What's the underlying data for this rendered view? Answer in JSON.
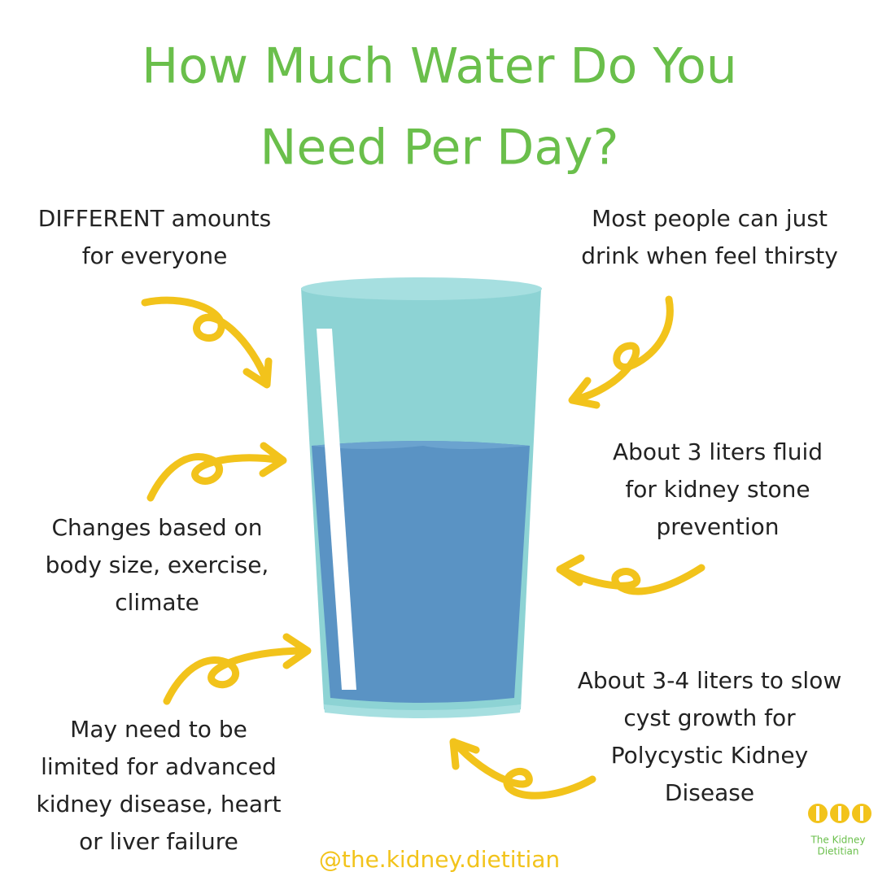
{
  "title": [
    "How Much Water Do You",
    "Need Per Day?"
  ],
  "notes": [
    [
      "DIFFERENT amounts",
      "for everyone"
    ],
    [
      "Most people can just",
      "drink when feel thirsty"
    ],
    [
      "About 3 liters fluid",
      "for kidney stone",
      "prevention"
    ],
    [
      "Changes based on",
      "body size, exercise,",
      "climate"
    ],
    [
      "About 3-4 liters to slow",
      "cyst growth for",
      "Polycystic Kidney",
      "Disease"
    ],
    [
      "May need to be",
      "limited for advanced",
      "kidney disease, heart",
      "or liver failure"
    ]
  ],
  "handle": "@the.kidney.dietitian",
  "logo": [
    "The Kidney",
    "Dietitian"
  ]
}
